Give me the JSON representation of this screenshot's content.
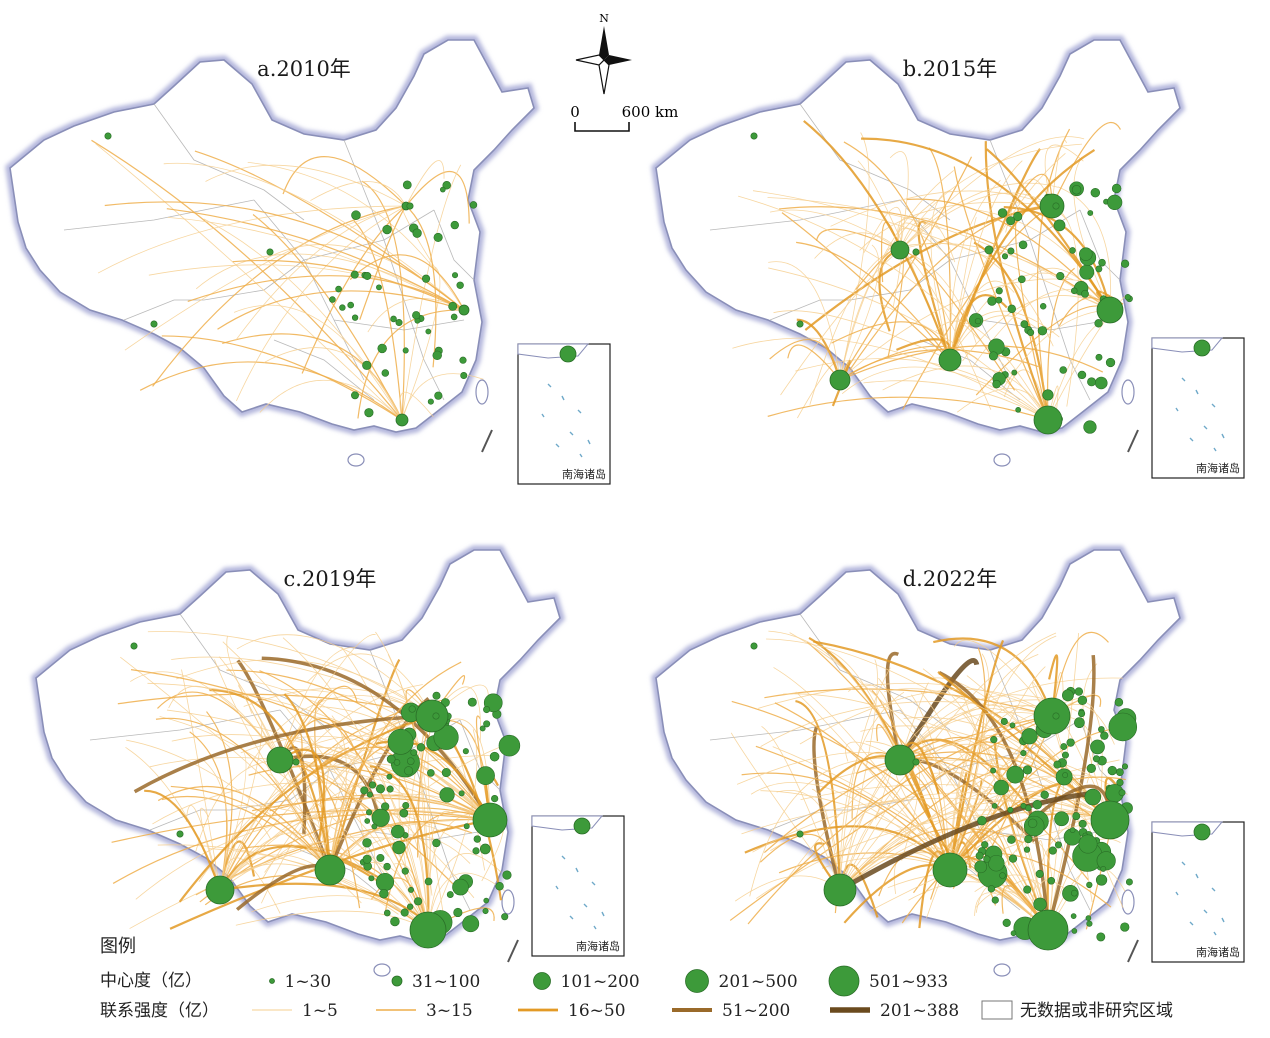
{
  "panels": [
    {
      "id": "a",
      "title": "a.2010年",
      "level": 1
    },
    {
      "id": "b",
      "title": "b.2015年",
      "level": 2
    },
    {
      "id": "c",
      "title": "c.2019年",
      "level": 3
    },
    {
      "id": "d",
      "title": "d.2022年",
      "level": 4
    }
  ],
  "inset_label": "南海诸岛",
  "north_label": "N",
  "scale_bar": {
    "start": "0",
    "end": "600 km"
  },
  "legend": {
    "title": "图例",
    "centrality_label": "中心度（亿）",
    "centrality_classes": [
      "1~30",
      "31~100",
      "101~200",
      "201~500",
      "501~933"
    ],
    "strength_label": "联系强度（亿）",
    "strength_classes": [
      "1~5",
      "3~15",
      "16~50",
      "51~200",
      "201~388"
    ],
    "no_data_label": "无数据或非研究区域"
  },
  "colors": {
    "node": "#3d9a3a",
    "node_stroke": "#2a6e27",
    "flow_weak": "#f6cf8f",
    "flow_mid": "#eeae4a",
    "flow_strong": "#e39a25",
    "flow_heavy": "#9a6a2a",
    "flow_max": "#6a4a1e",
    "border": "#8a8fb8",
    "province": "#b9b9b9"
  }
}
